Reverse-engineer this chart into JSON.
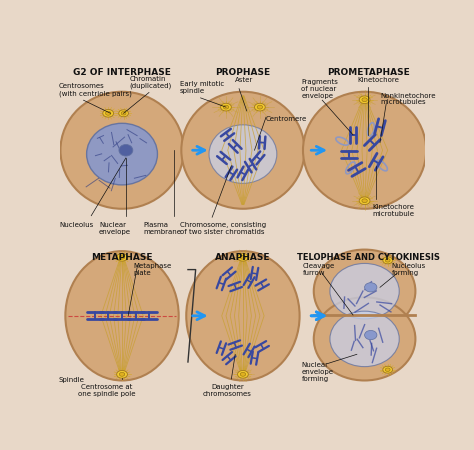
{
  "bg_color": "#e8d8c8",
  "cell_fill": "#d4a87a",
  "cell_edge": "#b08050",
  "cell_lw": 1.5,
  "nuc_fill": "#8898cc",
  "nuc_fill2": "#c8d0e8",
  "nuc_edge": "#6070a0",
  "chr_color": "#3848a0",
  "spindle_color": "#c8a030",
  "arrow_color": "#2196F3",
  "title_fs": 6.5,
  "label_fs": 5.0,
  "phases": [
    "G2 OF INTERPHASE",
    "PROPHASE",
    "PROMETAPHASE",
    "METAPHASE",
    "ANAPHASE",
    "TELOPHASE AND CYTOKINESIS"
  ]
}
